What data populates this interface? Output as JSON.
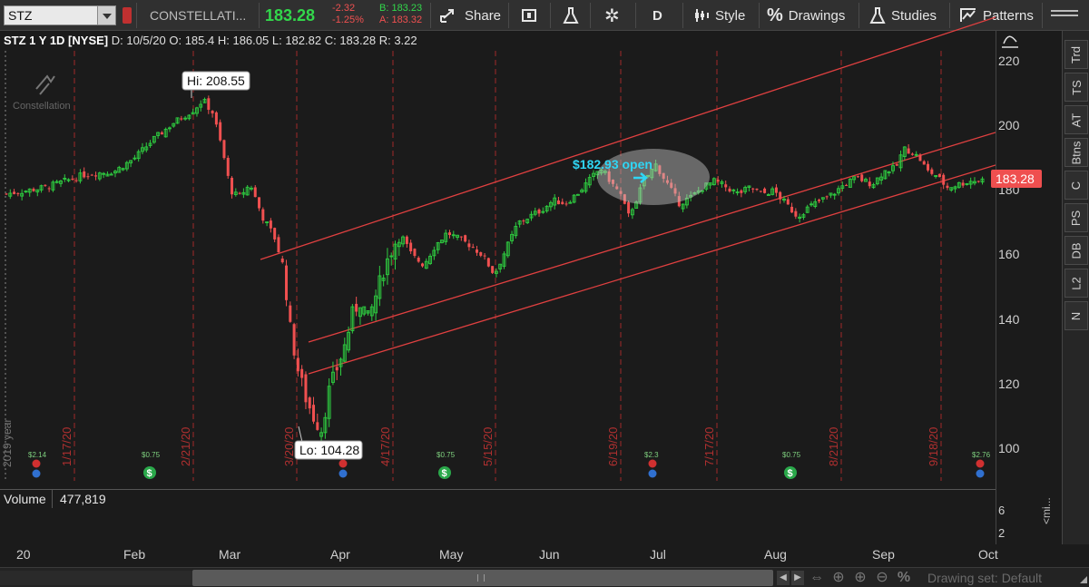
{
  "toolbar": {
    "symbol": "STZ",
    "company": "CONSTELLATI...",
    "last": "183.28",
    "change": "-2.32",
    "change_pct": "-1.25%",
    "bid": "B: 183.23",
    "ask": "A: 183.32",
    "share_label": "Share",
    "aggregation": "D",
    "style_label": "Style",
    "drawings_label": "Drawings",
    "studies_label": "Studies",
    "patterns_label": "Patterns"
  },
  "infobar": {
    "title": "STZ 1 Y 1D [NYSE]",
    "date": "D: 10/5/20",
    "open": "O: 185.4",
    "high": "H: 186.05",
    "low": "L: 182.82",
    "close": "C: 183.28",
    "range": "R: 3.22"
  },
  "chart": {
    "hi_label": "Hi: 208.55",
    "lo_label": "Lo: 104.28",
    "open_note": "$182.93 open",
    "price_tag": "183.28",
    "watermark": "Constellation",
    "year_label": "2019 year",
    "y_ticks": [
      "220",
      "200",
      "180",
      "160",
      "140",
      "120",
      "100"
    ],
    "vertical_dates": [
      "1/17/20",
      "2/21/20",
      "3/20/20",
      "4/17/20",
      "5/15/20",
      "6/19/20",
      "7/17/20",
      "8/21/20",
      "9/18/20"
    ],
    "dividends": [
      "$2.14",
      "$0.75",
      "$0.75",
      "$2.3",
      "$0.75",
      "$2.76"
    ],
    "colors": {
      "up": "#2ecc40",
      "down": "#f05050",
      "channel": "#e04040",
      "note": "#2fd6f5",
      "grid": "#a02828"
    }
  },
  "volume": {
    "label": "Volume",
    "value": "477,819",
    "axis": [
      "6",
      "2"
    ],
    "axis_unit": "<mi..."
  },
  "time_axis": [
    "20",
    "Feb",
    "Mar",
    "Apr",
    "May",
    "Jun",
    "Jul",
    "Aug",
    "Sep",
    "Oct"
  ],
  "side_tabs": [
    "Trd",
    "TS",
    "AT",
    "Btns",
    "C",
    "PS",
    "DB",
    "L2",
    "N"
  ],
  "drawing_set": "Drawing set: Default",
  "icons": [
    "share-icon",
    "add-alert-icon",
    "flask-icon",
    "gear-icon",
    "style-icon",
    "percent-icon",
    "studies-flask-icon",
    "patterns-icon",
    "fit-icon",
    "zoom-in-icon",
    "zoom-out-icon",
    "crosshair-icon"
  ]
}
